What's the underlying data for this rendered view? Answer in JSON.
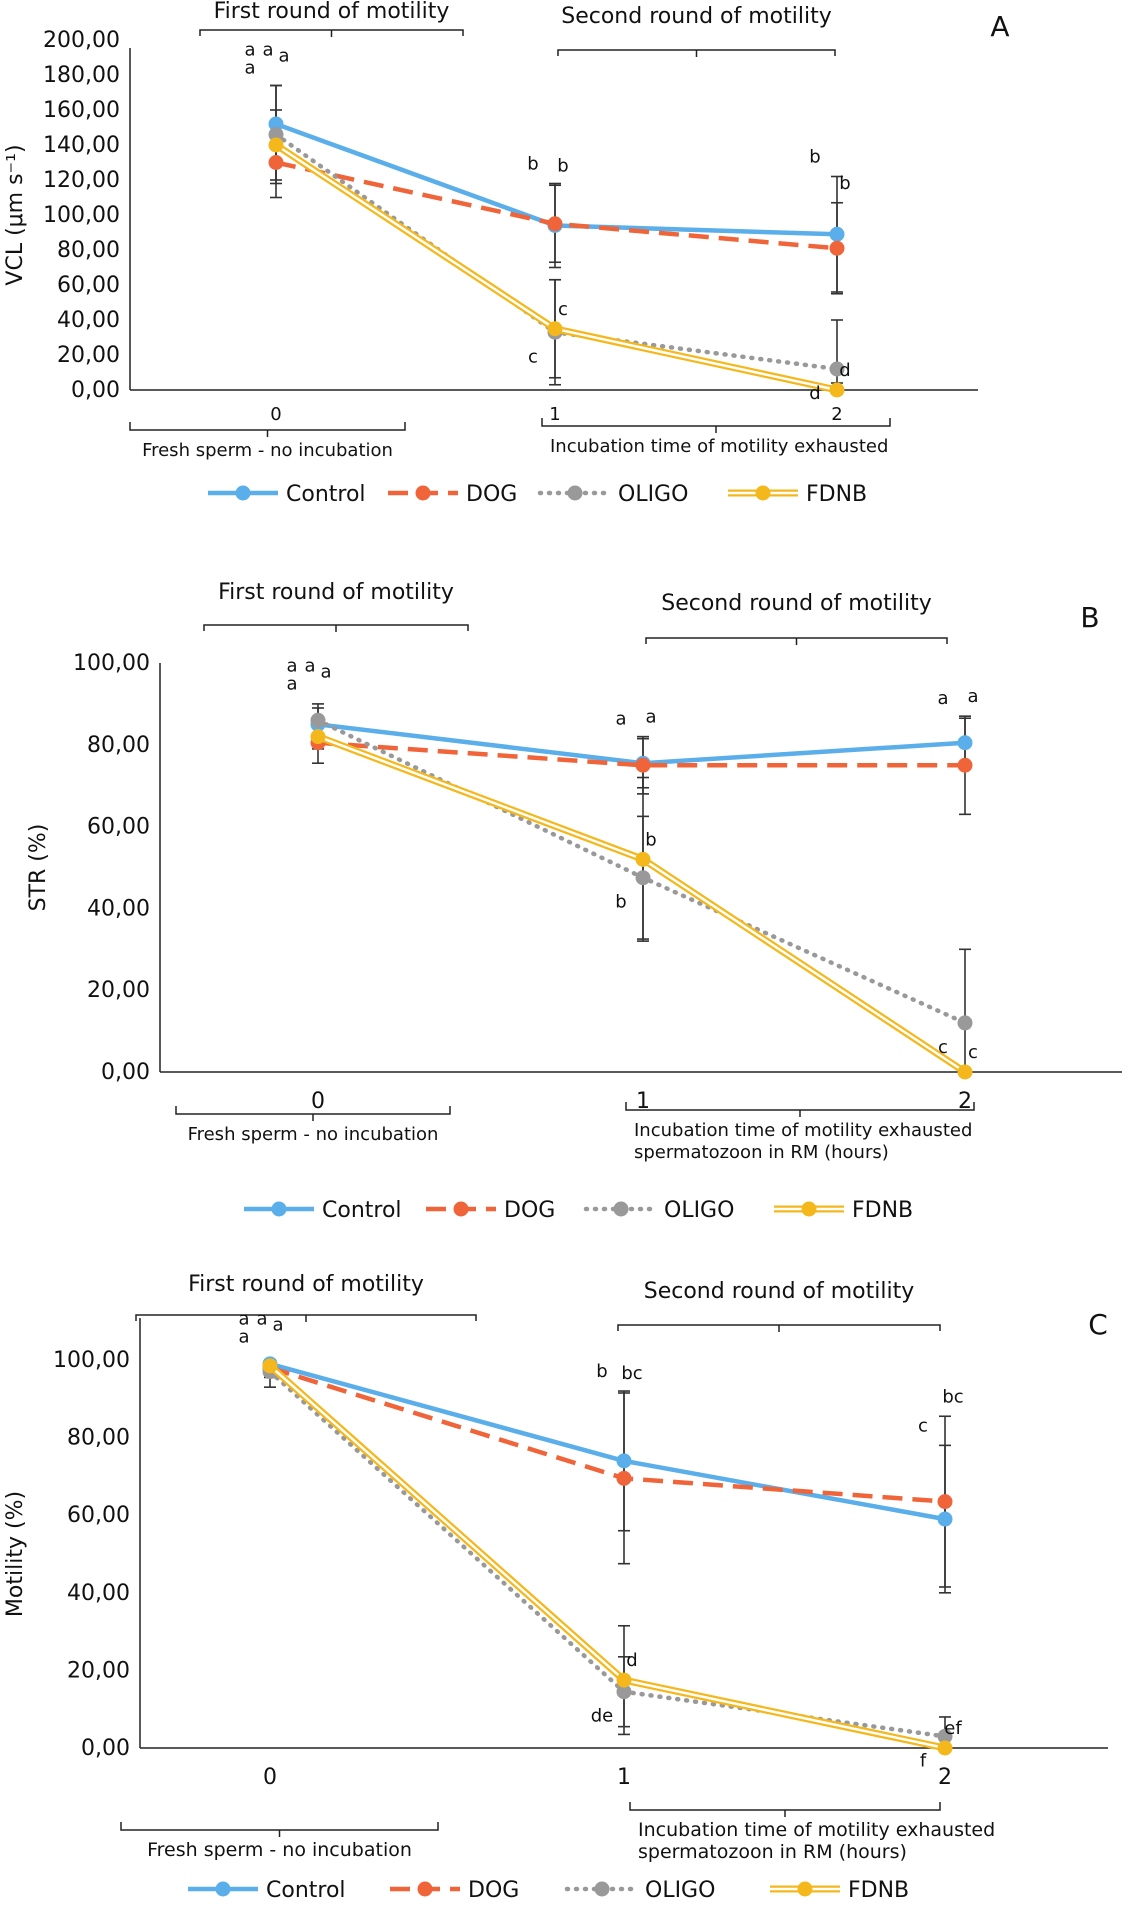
{
  "legend": {
    "control": "Control",
    "dog": "DOG",
    "oligo": "OLIGO",
    "fdnb": "FDNB"
  },
  "colors": {
    "control": "#5aaeea",
    "dog": "#f0643a",
    "oligo": "#999999",
    "fdnb": "#f5b81c",
    "error_bar": "#333333"
  },
  "chart_data": [
    {
      "type": "line",
      "panel_letter": "A",
      "ylabel": "VCL (μm s⁻¹)",
      "ylim": [
        0,
        200
      ],
      "yticks": [
        "0,00",
        "20,00",
        "40,00",
        "60,00",
        "80,00",
        "100,00",
        "120,00",
        "140,00",
        "160,00",
        "180,00",
        "200,00"
      ],
      "x": [
        0,
        1,
        2
      ],
      "xticks": [
        "0",
        "1",
        "2"
      ],
      "top_brackets": [
        "First round of motility",
        "Second round of motility"
      ],
      "bottom_brackets": [
        [
          "Fresh sperm - no incubation"
        ],
        [
          "Incubation time of motility exhausted"
        ]
      ],
      "series": [
        {
          "name": "Control",
          "values": [
            152,
            94,
            89
          ],
          "errors": [
            22,
            24,
            33
          ]
        },
        {
          "name": "DOG",
          "values": [
            130,
            95,
            81
          ],
          "errors": [
            20,
            22,
            26
          ]
        },
        {
          "name": "OLIGO",
          "values": [
            146,
            33,
            12
          ],
          "errors": [
            28,
            30,
            28
          ]
        },
        {
          "name": "FDNB",
          "values": [
            140,
            35,
            0
          ],
          "errors": [
            20,
            28,
            4
          ]
        }
      ],
      "letters": [
        [
          "a",
          "a",
          "a",
          "a"
        ],
        [
          "b",
          "b",
          "c",
          "c"
        ],
        [
          "b",
          "b",
          "d",
          "d"
        ]
      ]
    },
    {
      "type": "line",
      "panel_letter": "B",
      "ylabel": "STR (%)",
      "ylim": [
        0,
        100
      ],
      "yticks": [
        "0,00",
        "20,00",
        "40,00",
        "60,00",
        "80,00",
        "100,00"
      ],
      "x": [
        0,
        1,
        2
      ],
      "xticks": [
        "0",
        "1",
        "2"
      ],
      "top_brackets": [
        "First round of motility",
        "Second round of motility"
      ],
      "bottom_brackets": [
        [
          "Fresh sperm - no incubation"
        ],
        [
          "Incubation time of motility exhausted",
          "spermatozoon in RM (hours)"
        ]
      ],
      "series": [
        {
          "name": "Control",
          "values": [
            85,
            75.5,
            80.5
          ],
          "errors": [
            4,
            6,
            6
          ]
        },
        {
          "name": "DOG",
          "values": [
            80.5,
            75,
            75
          ],
          "errors": [
            5,
            7,
            12
          ]
        },
        {
          "name": "OLIGO",
          "values": [
            86,
            47.5,
            12
          ],
          "errors": [
            4,
            15,
            18
          ]
        },
        {
          "name": "FDNB",
          "values": [
            82,
            52,
            0
          ],
          "errors": [
            3,
            20,
            0
          ]
        }
      ],
      "letters": [
        [
          "a",
          "a",
          "a",
          "a"
        ],
        [
          "a",
          "a",
          "b",
          "b"
        ],
        [
          "a",
          "a",
          "c",
          "c"
        ]
      ]
    },
    {
      "type": "line",
      "panel_letter": "C",
      "ylabel": "Motility (%)",
      "ylim": [
        0,
        100
      ],
      "yticks": [
        "0,00",
        "20,00",
        "40,00",
        "60,00",
        "80,00",
        "100,00"
      ],
      "x": [
        0,
        1,
        2
      ],
      "xticks": [
        "0",
        "1",
        "2"
      ],
      "top_brackets": [
        "First round of motility",
        "Second round of motility"
      ],
      "bottom_brackets": [
        [
          "Fresh sperm - no incubation"
        ],
        [
          "Incubation time of motility exhausted",
          "spermatozoon in RM (hours)"
        ]
      ],
      "series": [
        {
          "name": "Control",
          "values": [
            99,
            74,
            59
          ],
          "errors": [
            1.5,
            18,
            19
          ]
        },
        {
          "name": "DOG",
          "values": [
            98,
            69.5,
            63.5
          ],
          "errors": [
            2.5,
            22,
            22
          ]
        },
        {
          "name": "OLIGO",
          "values": [
            97,
            14.5,
            3
          ],
          "errors": [
            4,
            9,
            5
          ]
        },
        {
          "name": "FDNB",
          "values": [
            98.5,
            17.5,
            0
          ],
          "errors": [
            2,
            14,
            0
          ]
        }
      ],
      "letters": [
        [
          "a",
          "a",
          "a",
          "a"
        ],
        [
          "b",
          "bc",
          "de",
          "d"
        ],
        [
          "c",
          "bc",
          "f",
          "ef"
        ]
      ]
    }
  ]
}
